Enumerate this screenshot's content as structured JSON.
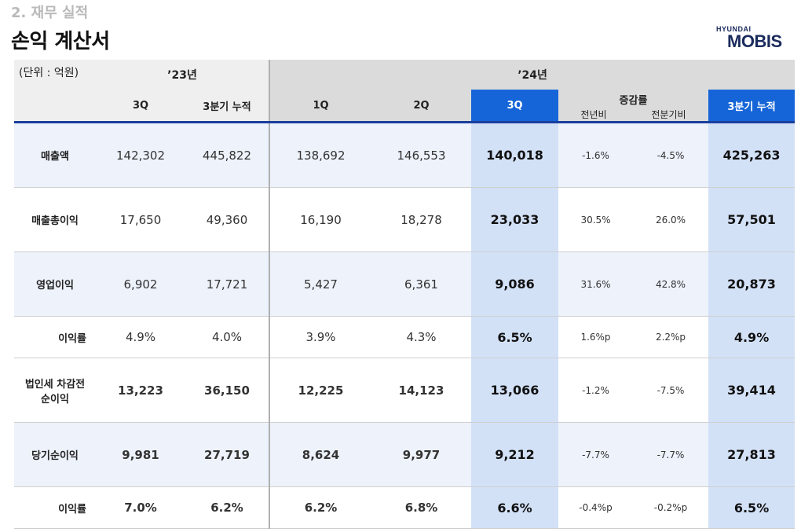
{
  "header": {
    "section": "2. 재무 실적",
    "title": "손익 계산서",
    "logo_top": "HYUNDAI",
    "logo_main": "MOBIS"
  },
  "table": {
    "unit": "(단위 : 억원)",
    "year23": "’23년",
    "year24": "’24년",
    "cols23": [
      "3Q",
      "3분기 누적"
    ],
    "cols24": [
      "1Q",
      "2Q",
      "3Q"
    ],
    "change_group": "증감률",
    "change_sub": [
      "전년비",
      "전분기비"
    ],
    "cum24": "3분기 누적",
    "rows": [
      {
        "label": "매출액",
        "v23_3q": "142,302",
        "v23_cum": "445,822",
        "v24_1q": "138,692",
        "v24_2q": "146,553",
        "v24_3q": "140,018",
        "yoy": "-1.6%",
        "qoq": "-4.5%",
        "v24_cum": "425,263"
      },
      {
        "label": "매출총이익",
        "v23_3q": "17,650",
        "v23_cum": "49,360",
        "v24_1q": "16,190",
        "v24_2q": "18,278",
        "v24_3q": "23,033",
        "yoy": "30.5%",
        "qoq": "26.0%",
        "v24_cum": "57,501"
      },
      {
        "label": "영업이익",
        "v23_3q": "6,902",
        "v23_cum": "17,721",
        "v24_1q": "5,427",
        "v24_2q": "6,361",
        "v24_3q": "9,086",
        "yoy": "31.6%",
        "qoq": "42.8%",
        "v24_cum": "20,873"
      },
      {
        "label": "이익률",
        "v23_3q": "4.9%",
        "v23_cum": "4.0%",
        "v24_1q": "3.9%",
        "v24_2q": "4.3%",
        "v24_3q": "6.5%",
        "yoy": "1.6%p",
        "qoq": "2.2%p",
        "v24_cum": "4.9%"
      },
      {
        "label": "법인세 차감전\n순이익",
        "v23_3q": "13,223",
        "v23_cum": "36,150",
        "v24_1q": "12,225",
        "v24_2q": "14,123",
        "v24_3q": "13,066",
        "yoy": "-1.2%",
        "qoq": "-7.5%",
        "v24_cum": "39,414"
      },
      {
        "label": "당기순이익",
        "v23_3q": "9,981",
        "v23_cum": "27,719",
        "v24_1q": "8,624",
        "v24_2q": "9,977",
        "v24_3q": "9,212",
        "yoy": "-7.7%",
        "qoq": "-7.7%",
        "v24_cum": "27,813"
      },
      {
        "label": "이익률",
        "v23_3q": "7.0%",
        "v23_cum": "6.2%",
        "v24_1q": "6.2%",
        "v24_2q": "6.8%",
        "v24_3q": "6.6%",
        "yoy": "-0.4%p",
        "qoq": "-0.2%p",
        "v24_cum": "6.5%"
      }
    ]
  }
}
